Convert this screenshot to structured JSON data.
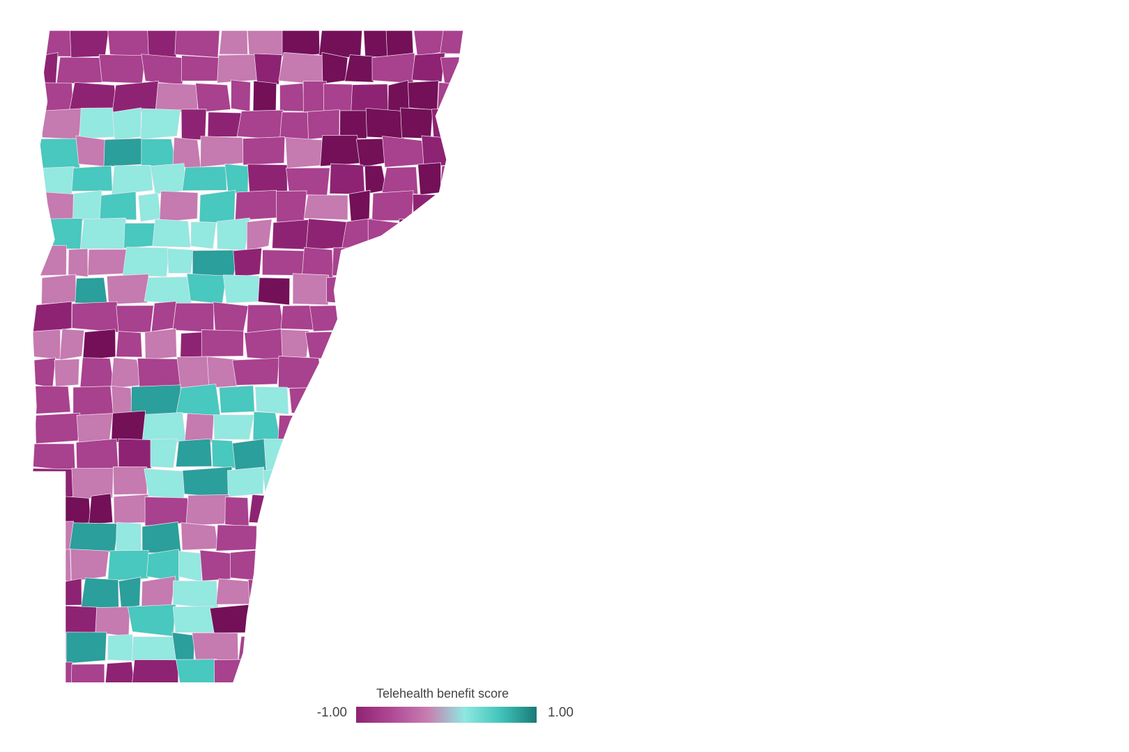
{
  "legend": {
    "title": "Telehealth benefit score",
    "min_label": "-1.00",
    "max_label": "1.00",
    "min": -1.0,
    "max": 1.0,
    "gradient": [
      "#8e2373",
      "#b04a96",
      "#c77fb1",
      "#8fe8df",
      "#41c4bb",
      "#187a77"
    ]
  },
  "map": {
    "region": "Vermont",
    "unit": "town",
    "colors": {
      "very_low": "#731058",
      "low": "#8e2373",
      "below": "#a8418e",
      "slightly_below": "#c57ab0",
      "slightly_above": "#93e8e0",
      "above": "#48c8be",
      "high": "#2a9f9b",
      "border": "#f3e6f0"
    }
  }
}
